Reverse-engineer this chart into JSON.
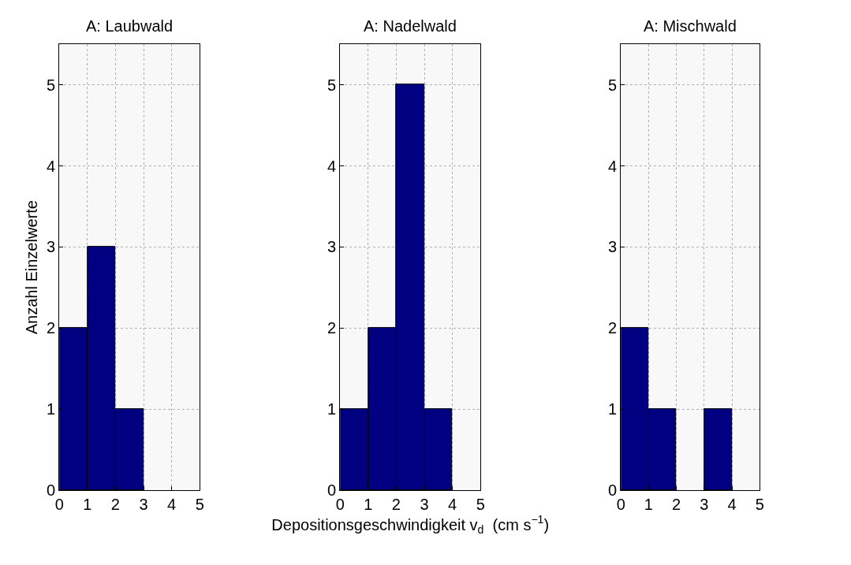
{
  "chart_data": [
    {
      "type": "histogram",
      "title": "A: Laubwald",
      "ylabel": "Anzahl Einzelwerte",
      "bins": [
        0,
        1,
        2,
        3,
        4,
        5
      ],
      "values": [
        2,
        3,
        1,
        0,
        0
      ],
      "color": "#000080",
      "xlim": [
        0,
        5
      ],
      "ylim": [
        0,
        5.5
      ],
      "xticks": [
        0,
        1,
        2,
        3,
        4,
        5
      ],
      "yticks": [
        0,
        1,
        2,
        3,
        4,
        5
      ],
      "grid": true
    },
    {
      "type": "histogram",
      "title": "A: Nadelwald",
      "xlabel": "Depositionsgeschwindigkeit v$_{d}$  (cm s$^{−1}$)",
      "bins": [
        0,
        1,
        2,
        3,
        4,
        5
      ],
      "values": [
        1,
        2,
        5,
        1,
        0
      ],
      "color": "#000080",
      "xlim": [
        0,
        5
      ],
      "ylim": [
        0,
        5.5
      ],
      "xticks": [
        0,
        1,
        2,
        3,
        4,
        5
      ],
      "yticks": [
        0,
        1,
        2,
        3,
        4,
        5
      ],
      "grid": true
    },
    {
      "type": "histogram",
      "title": "A: Mischwald",
      "bins": [
        0,
        1,
        2,
        3,
        4,
        5
      ],
      "values": [
        2,
        1,
        0,
        1,
        0
      ],
      "color": "#000080",
      "xlim": [
        0,
        5
      ],
      "ylim": [
        0,
        5.5
      ],
      "xticks": [
        0,
        1,
        2,
        3,
        4,
        5
      ],
      "yticks": [
        0,
        1,
        2,
        3,
        4,
        5
      ],
      "grid": true
    }
  ]
}
